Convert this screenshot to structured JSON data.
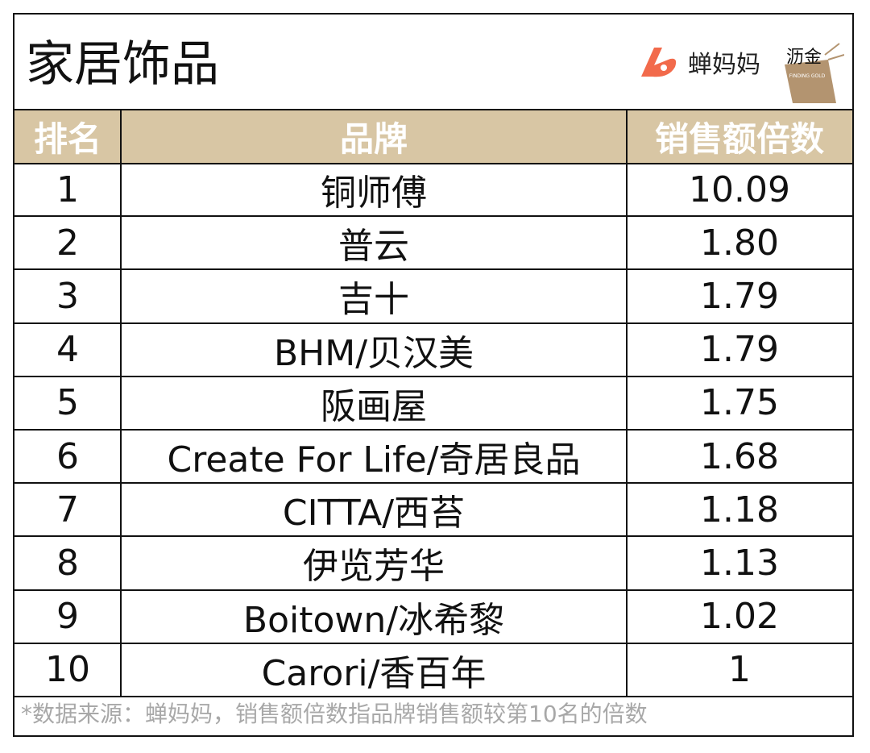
{
  "header": {
    "title": "家居饰品",
    "logo_text": "蝉妈妈",
    "badge_text": "沥金",
    "badge_subtext": "FINDING GOLD"
  },
  "table": {
    "columns": [
      "排名",
      "品牌",
      "销售额倍数"
    ],
    "rows": [
      [
        "1",
        "铜师傅",
        "10.09"
      ],
      [
        "2",
        "普云",
        "1.80"
      ],
      [
        "3",
        "吉十",
        "1.79"
      ],
      [
        "4",
        "BHM/贝汉美",
        "1.79"
      ],
      [
        "5",
        "阪画屋",
        "1.75"
      ],
      [
        "6",
        "Create For Life/奇居良品",
        "1.68"
      ],
      [
        "7",
        "CITTA/西苔",
        "1.18"
      ],
      [
        "8",
        "伊览芳华",
        "1.13"
      ],
      [
        "9",
        "Boitown/冰希黎",
        "1.02"
      ],
      [
        "10",
        "Carori/香百年",
        "1"
      ]
    ]
  },
  "footer": {
    "note": "*数据来源：蝉妈妈，销售额倍数指品牌销售额较第10名的倍数"
  }
}
